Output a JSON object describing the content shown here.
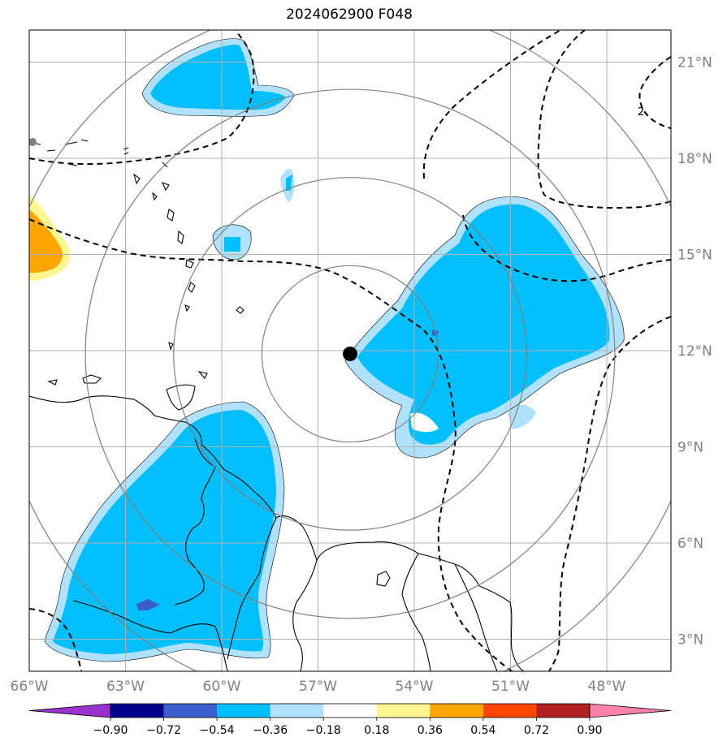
{
  "title": "2024062900 F048",
  "map": {
    "lon_range": [
      -66,
      -46
    ],
    "lat_range": [
      2,
      22
    ],
    "lon_ticks": [
      {
        "value": -66,
        "label": "66°W"
      },
      {
        "value": -63,
        "label": "63°W"
      },
      {
        "value": -60,
        "label": "60°W"
      },
      {
        "value": -57,
        "label": "57°W"
      },
      {
        "value": -54,
        "label": "54°W"
      },
      {
        "value": -51,
        "label": "51°W"
      },
      {
        "value": -48,
        "label": "48°W"
      }
    ],
    "lat_ticks": [
      {
        "value": 21,
        "label": "21°N"
      },
      {
        "value": 18,
        "label": "18°N"
      },
      {
        "value": 15,
        "label": "15°N"
      },
      {
        "value": 12,
        "label": "12°N"
      },
      {
        "value": 9,
        "label": "9°N"
      },
      {
        "value": 6,
        "label": "6°N"
      },
      {
        "value": 3,
        "label": "3°N"
      }
    ],
    "grid": true,
    "center": {
      "lon": -56.0,
      "lat": 11.9
    },
    "range_ring_degrees": [
      2.75,
      5.5,
      8.25,
      11.0
    ],
    "contour_label": "2",
    "colors": {
      "land": "#ffffff",
      "coast": "#000000",
      "grid": "#b0b0b0",
      "rings": "#808080",
      "dashed": "#000000",
      "center_marker": "#000000"
    }
  },
  "colorbar": {
    "ticks": [
      "−0.90",
      "−0.72",
      "−0.54",
      "−0.36",
      "−0.18",
      "0.18",
      "0.36",
      "0.54",
      "0.72",
      "0.90"
    ],
    "colors": [
      "#9932cc",
      "#00008b",
      "#3a5fcd",
      "#00bfff",
      "#b0e2ff",
      "#ffffff",
      "#fff68f",
      "#ffa500",
      "#ff4500",
      "#b22222",
      "#ff82ab"
    ]
  }
}
